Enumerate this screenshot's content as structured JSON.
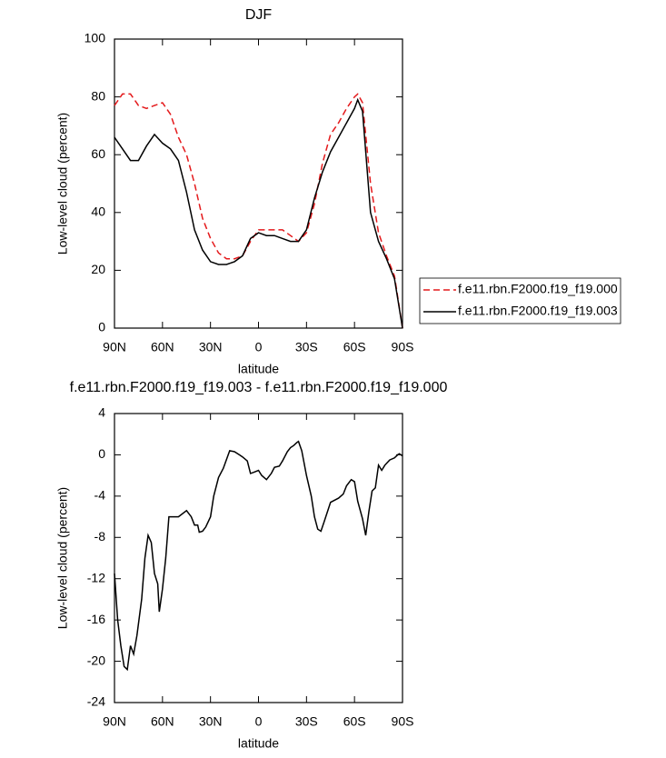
{
  "chart_data": [
    {
      "type": "line",
      "title": "DJF",
      "xlabel": "latitude",
      "ylabel": "Low-level cloud (percent)",
      "x": [
        90,
        85,
        80,
        75,
        70,
        65,
        60,
        55,
        50,
        45,
        40,
        35,
        30,
        25,
        20,
        15,
        10,
        5,
        0,
        -5,
        -10,
        -15,
        -20,
        -25,
        -30,
        -35,
        -40,
        -45,
        -50,
        -55,
        -60,
        -62,
        -65,
        -70,
        -75,
        -80,
        -85,
        -90
      ],
      "series": [
        {
          "name": "f.e11.rbn.F2000.f19_f19.000",
          "color": "#e41a1c",
          "line_style": "dashed",
          "values": [
            77,
            81,
            81,
            77,
            76,
            77,
            78,
            74,
            66,
            60,
            50,
            38,
            31,
            26,
            24,
            24,
            25,
            30,
            34,
            34,
            34,
            34,
            32,
            30,
            33,
            43,
            57,
            67,
            71,
            76,
            80,
            81,
            78,
            50,
            33,
            25,
            18,
            0
          ]
        },
        {
          "name": "f.e11.rbn.F2000.f19_f19.003",
          "color": "#000000",
          "line_style": "solid",
          "values": [
            66,
            62,
            58,
            58,
            63,
            67,
            64,
            62,
            58,
            47,
            34,
            27,
            23,
            22,
            22,
            23,
            25,
            31,
            33,
            32,
            32,
            31,
            30,
            30,
            34,
            45,
            54,
            61,
            66,
            71,
            76,
            79,
            75,
            40,
            30,
            24,
            17,
            0
          ]
        }
      ],
      "xlim": [
        90,
        -90
      ],
      "xticks": [
        {
          "value": 90,
          "label": "90N"
        },
        {
          "value": 60,
          "label": "60N"
        },
        {
          "value": 30,
          "label": "30N"
        },
        0,
        {
          "value": -30,
          "label": "30S"
        },
        {
          "value": -60,
          "label": "60S"
        },
        {
          "value": -90,
          "label": "90S"
        }
      ],
      "ylim": [
        0,
        100
      ],
      "yticks": [
        0,
        20,
        40,
        60,
        80,
        100
      ],
      "legend": "right"
    },
    {
      "type": "line",
      "title": "f.e11.rbn.F2000.f19_f19.003 - f.e11.rbn.F2000.f19_f19.000",
      "xlabel": "latitude",
      "ylabel": "Low-level cloud (percent)",
      "x": [
        90,
        88,
        86,
        84,
        82,
        80,
        78,
        76,
        73,
        71,
        69,
        67,
        65,
        63,
        62,
        60,
        58,
        56,
        50,
        45,
        42,
        40,
        38,
        37,
        35,
        33,
        30,
        28,
        25,
        22,
        18,
        15,
        12,
        10,
        7,
        5,
        3,
        0,
        -2,
        -5,
        -8,
        -10,
        -13,
        -15,
        -18,
        -20,
        -22,
        -24,
        -25,
        -27,
        -30,
        -33,
        -35,
        -37,
        -39,
        -41,
        -45,
        -50,
        -53,
        -55,
        -58,
        -60,
        -62,
        -65,
        -67,
        -69,
        -71,
        -73,
        -75,
        -77,
        -79,
        -82,
        -85,
        -87,
        -88,
        -90
      ],
      "color": "#000000",
      "values": [
        -11.5,
        -16,
        -18.5,
        -20.5,
        -20.8,
        -18.5,
        -19.3,
        -17.5,
        -14,
        -10,
        -7.8,
        -8.5,
        -11.5,
        -12.5,
        -15.2,
        -13,
        -10,
        -6,
        -6,
        -5.4,
        -6,
        -6.8,
        -6.8,
        -7.5,
        -7.4,
        -7,
        -6,
        -4,
        -2.2,
        -1.3,
        0.4,
        0.3,
        0,
        -0.2,
        -0.6,
        -1.8,
        -1.7,
        -1.5,
        -2,
        -2.4,
        -1.8,
        -1.2,
        -1.1,
        -0.6,
        0.3,
        0.7,
        0.9,
        1.2,
        1.3,
        0.4,
        -2,
        -4,
        -6,
        -7.2,
        -7.4,
        -6.5,
        -4.6,
        -4.2,
        -3.8,
        -3,
        -2.4,
        -2.6,
        -4.5,
        -6.2,
        -7.8,
        -5.5,
        -3.5,
        -3.2,
        -1,
        -1.5,
        -1,
        -0.5,
        -0.3,
        0,
        0.1,
        -0.1
      ],
      "xlim": [
        90,
        -90
      ],
      "xticks": [
        {
          "value": 90,
          "label": "90N"
        },
        {
          "value": 60,
          "label": "60N"
        },
        {
          "value": 30,
          "label": "30N"
        },
        0,
        {
          "value": -30,
          "label": "30S"
        },
        {
          "value": -60,
          "label": "60S"
        },
        {
          "value": -90,
          "label": "90S"
        }
      ],
      "ylim": [
        -24,
        4
      ],
      "yticks": [
        -24,
        -20,
        -16,
        -12,
        -8,
        -4,
        0,
        4
      ]
    }
  ]
}
